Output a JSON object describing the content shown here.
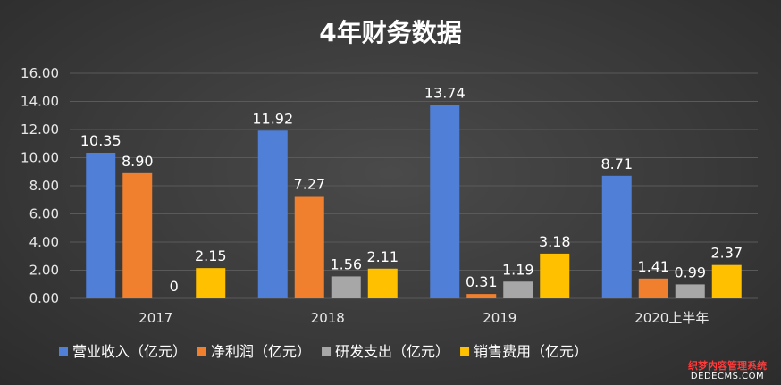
{
  "chart_data": {
    "type": "bar",
    "title": "4年财务数据",
    "categories": [
      "2017",
      "2018",
      "2019",
      "2020上半年"
    ],
    "series": [
      {
        "name": "营业收入（亿元）",
        "color": "#4f7fd6",
        "values": [
          10.35,
          11.92,
          13.74,
          8.71
        ],
        "labels": [
          "10.35",
          "11.92",
          "13.74",
          "8.71"
        ]
      },
      {
        "name": "净利润（亿元）",
        "color": "#f07f2e",
        "values": [
          8.9,
          7.27,
          0.31,
          1.41
        ],
        "labels": [
          "8.90",
          "7.27",
          "0.31",
          "1.41"
        ]
      },
      {
        "name": "研发支出（亿元）",
        "color": "#a7a7a7",
        "values": [
          0,
          1.56,
          1.19,
          0.99
        ],
        "labels": [
          "0",
          "1.56",
          "1.19",
          "0.99"
        ]
      },
      {
        "name": "销售费用（亿元）",
        "color": "#ffc000",
        "values": [
          2.15,
          2.11,
          3.18,
          2.37
        ],
        "labels": [
          "2.15",
          "2.11",
          "3.18",
          "2.37"
        ]
      }
    ],
    "ylim": [
      0,
      16
    ],
    "yticks": [
      "0.00",
      "2.00",
      "4.00",
      "6.00",
      "8.00",
      "10.00",
      "12.00",
      "14.00",
      "16.00"
    ],
    "grid": true,
    "legend_position": "bottom"
  },
  "watermark": {
    "line1": "织梦内容管理系统",
    "line2": "DEDECMS.COM"
  }
}
